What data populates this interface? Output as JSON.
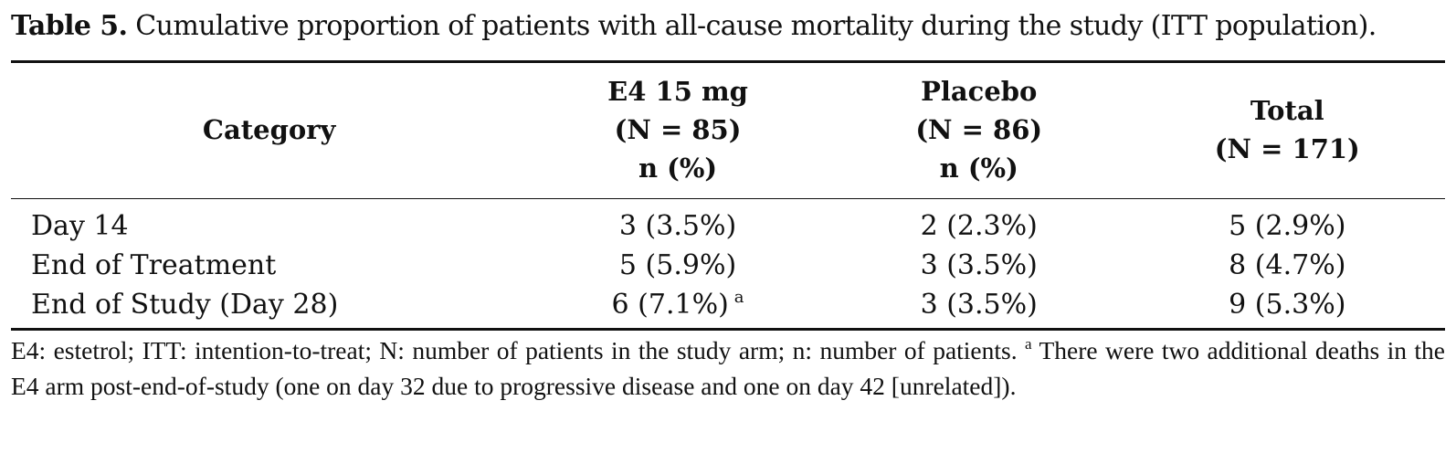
{
  "caption": {
    "label": "Table 5.",
    "text": "Cumulative proportion of patients with all-cause mortality during the study (ITT population)."
  },
  "table": {
    "columns": [
      {
        "lines": [
          "Category"
        ]
      },
      {
        "lines": [
          "E4 15 mg",
          "(N = 85)",
          "n (%)"
        ]
      },
      {
        "lines": [
          "Placebo",
          "(N = 86)",
          "n (%)"
        ]
      },
      {
        "lines": [
          "Total",
          "(N = 171)"
        ]
      }
    ],
    "rows": [
      {
        "category": "Day 14",
        "e4": "3 (3.5%)",
        "e4_sup": "",
        "placebo": "2 (2.3%)",
        "total": "5 (2.9%)"
      },
      {
        "category": "End of Treatment",
        "e4": "5 (5.9%)",
        "e4_sup": "",
        "placebo": "3 (3.5%)",
        "total": "8 (4.7%)"
      },
      {
        "category": "End of Study (Day 28)",
        "e4": "6 (7.1%)",
        "e4_sup": "a",
        "placebo": "3 (3.5%)",
        "total": "9 (5.3%)"
      }
    ]
  },
  "footnote": {
    "abbreviations": "E4: estetrol; ITT: intention-to-treat; N: number of patients in the study arm; n: number of patients.",
    "marker": "a",
    "note": "There were two additional deaths in the E4 arm post-end-of-study (one on day 32 due to progressive disease and one on day 42 [unrelated])."
  }
}
